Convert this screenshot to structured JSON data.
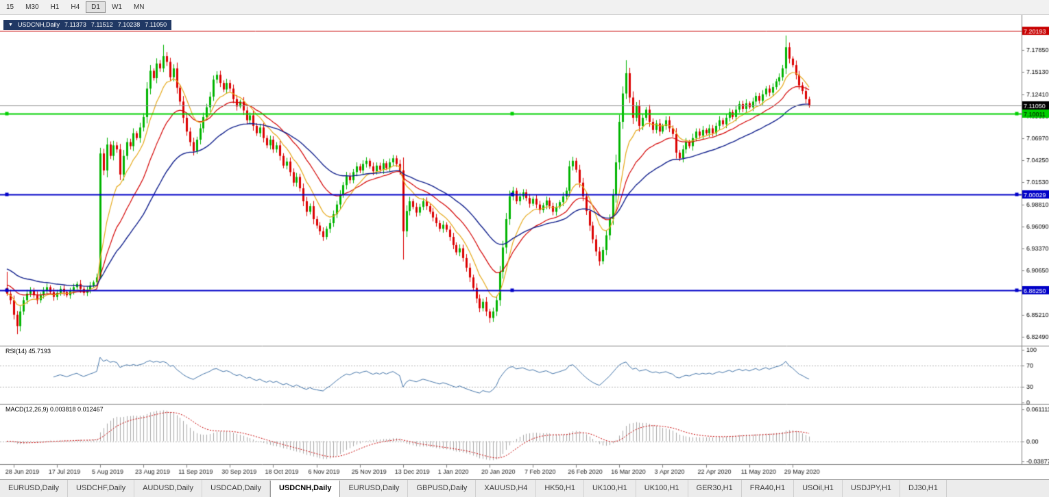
{
  "toolbar": {
    "buttons": [
      "15",
      "M30",
      "H1",
      "H4",
      "D1",
      "W1",
      "MN"
    ],
    "active": "D1"
  },
  "symbol_info": {
    "arrow": "▼",
    "name": "USDCNH,Daily",
    "open": "7.11373",
    "high": "7.11512",
    "low": "7.10238",
    "close": "7.11050"
  },
  "colors": {
    "candle_up": "#00b400",
    "candle_down": "#dc0000",
    "background": "#ffffff",
    "axis_text": "#000000",
    "panel_separator": "#808080",
    "grid_level": "#b4b4b4",
    "current_price_line": "#909090"
  },
  "chart_data": {
    "type": "candlestick",
    "symbol": "USDCNH",
    "timeframe": "Daily",
    "x_labels": [
      "28 Jun 2019",
      "17 Jul 2019",
      "5 Aug 2019",
      "23 Aug 2019",
      "11 Sep 2019",
      "30 Sep 2019",
      "18 Oct 2019",
      "6 Nov 2019",
      "25 Nov 2019",
      "13 Dec 2019",
      "1 Jan 2020",
      "20 Jan 2020",
      "7 Feb 2020",
      "26 Feb 2020",
      "16 Mar 2020",
      "3 Apr 2020",
      "22 Apr 2020",
      "11 May 2020",
      "29 May 2020"
    ],
    "x_label_indices": [
      2,
      15,
      28,
      41,
      54,
      67,
      80,
      93,
      106,
      119,
      132,
      145,
      158,
      171,
      184,
      197,
      210,
      223,
      236
    ],
    "price_axis": {
      "ticks": [
        "7.17850",
        "7.15130",
        "7.12410",
        "7.09690",
        "7.06970",
        "7.04250",
        "7.01530",
        "6.98810",
        "6.96090",
        "6.93370",
        "6.90650",
        "6.87930",
        "6.85210",
        "6.82490"
      ],
      "top_price": 7.215,
      "bottom_price": 6.818
    },
    "candles": {
      "first_open": 6.885,
      "closes": [
        6.878,
        6.87,
        6.852,
        6.838,
        6.856,
        6.87,
        6.878,
        6.882,
        6.876,
        6.87,
        6.876,
        6.882,
        6.886,
        6.88,
        6.874,
        6.879,
        6.884,
        6.88,
        6.876,
        6.881,
        6.886,
        6.89,
        6.884,
        6.879,
        6.883,
        6.888,
        6.892,
        6.898,
        7.051,
        7.03,
        7.062,
        7.048,
        7.061,
        7.056,
        7.025,
        7.048,
        7.065,
        7.06,
        7.076,
        7.07,
        7.083,
        7.096,
        7.131,
        7.153,
        7.144,
        7.162,
        7.156,
        7.171,
        7.164,
        7.145,
        7.156,
        7.132,
        7.115,
        7.095,
        7.078,
        7.065,
        7.054,
        7.068,
        7.082,
        7.096,
        7.108,
        7.121,
        7.142,
        7.148,
        7.138,
        7.13,
        7.138,
        7.131,
        7.118,
        7.109,
        7.115,
        7.104,
        7.092,
        7.098,
        7.085,
        7.076,
        7.083,
        7.07,
        7.061,
        7.068,
        7.056,
        7.061,
        7.048,
        7.036,
        7.041,
        7.028,
        7.015,
        7.022,
        7.008,
        6.992,
        6.979,
        6.986,
        6.97,
        6.962,
        6.955,
        6.948,
        6.958,
        6.965,
        6.976,
        6.988,
        7.0,
        7.012,
        7.023,
        7.018,
        7.028,
        7.035,
        7.03,
        7.038,
        7.042,
        7.035,
        7.029,
        7.036,
        7.031,
        7.039,
        7.033,
        7.04,
        7.045,
        7.038,
        7.03,
        6.955,
        6.98,
        6.992,
        6.985,
        6.978,
        6.985,
        6.992,
        6.986,
        6.979,
        6.972,
        6.965,
        6.958,
        6.963,
        6.957,
        6.948,
        6.938,
        6.929,
        6.934,
        6.922,
        6.91,
        6.898,
        6.885,
        6.872,
        6.86,
        6.868,
        6.856,
        6.848,
        6.856,
        6.87,
        6.905,
        6.935,
        6.97,
        6.998,
        7.005,
        6.992,
        6.998,
        7.003,
        6.996,
        6.989,
        6.995,
        6.988,
        6.981,
        6.987,
        6.993,
        6.986,
        6.979,
        6.985,
        6.991,
        6.998,
        7.005,
        7.035,
        7.042,
        7.031,
        7.015,
        6.998,
        6.98,
        6.962,
        6.945,
        6.93,
        6.918,
        6.932,
        6.95,
        6.97,
        7.0,
        7.04,
        7.09,
        7.125,
        7.15,
        7.12,
        7.095,
        7.11,
        7.085,
        7.095,
        7.105,
        7.09,
        7.08,
        7.088,
        7.078,
        7.085,
        7.092,
        7.082,
        7.075,
        7.052,
        7.045,
        7.056,
        7.065,
        7.06,
        7.07,
        7.078,
        7.073,
        7.08,
        7.076,
        7.082,
        7.076,
        7.085,
        7.092,
        7.087,
        7.095,
        7.102,
        7.096,
        7.105,
        7.112,
        7.106,
        7.113,
        7.108,
        7.115,
        7.122,
        7.116,
        7.124,
        7.131,
        7.126,
        7.133,
        7.14,
        7.145,
        7.156,
        7.182,
        7.168,
        7.16,
        7.148,
        7.135,
        7.128,
        7.118,
        7.1105
      ],
      "overrides": {
        "0": {
          "h": 6.905
        },
        "3": {
          "l": 6.828
        },
        "28": {
          "h": 7.058,
          "l": 6.896
        },
        "47": {
          "h": 7.185
        },
        "119": {
          "h": 7.046,
          "l": 6.92
        },
        "145": {
          "l": 6.842
        },
        "186": {
          "h": 7.166
        },
        "234": {
          "h": 7.1965
        }
      }
    },
    "moving_averages": [
      {
        "name": "ma-fast-red",
        "period": 20,
        "seed": 6.89,
        "color": "#d40000",
        "width": 1.2
      },
      {
        "name": "ma-fast-gold",
        "period": 9,
        "seed": 6.878,
        "color": "#e6a817",
        "width": 1.2
      },
      {
        "name": "ma-slow-navy",
        "period": 40,
        "seed": 6.91,
        "color": "#101f8c",
        "width": 1.4
      }
    ],
    "hlines": [
      {
        "price": 7.20193,
        "color": "#c80000",
        "width": 1,
        "handles": false,
        "text_color": "#ffffff"
      },
      {
        "price": 7.10011,
        "color": "#00d000",
        "width": 2,
        "handles": true,
        "text_color": "#000000"
      },
      {
        "price": 7.00029,
        "color": "#0000c8",
        "width": 2,
        "handles": true,
        "text_color": "#ffffff"
      },
      {
        "price": 6.8825,
        "color": "#0000c8",
        "width": 2,
        "handles": true,
        "text_color": "#ffffff"
      }
    ],
    "current_price": {
      "price": 7.1105,
      "line_color": "#909090",
      "box_color": "#000000",
      "text_color": "#ffffff"
    },
    "rsi": {
      "period": 14,
      "header": "RSI(14) 45.7193",
      "value": "45.7193",
      "levels": [
        70,
        30
      ],
      "axis_labels": [
        "100",
        "70",
        "30",
        "0"
      ],
      "axis_values": [
        100,
        70,
        30,
        0
      ],
      "color": "#4173a8"
    },
    "macd": {
      "fast": 12,
      "slow": 26,
      "signal": 9,
      "header": "MACD(12,26,9) 0.003818 0.012467",
      "main_value": "0.003818",
      "signal_value": "0.012467",
      "axis_labels": [
        "0.0611119",
        "0.00",
        "-0.03877"
      ],
      "axis_values": [
        0.0611119,
        0,
        -0.03877
      ],
      "hist_color": "#a8a8a8",
      "signal_color": "#c80000"
    }
  },
  "tabs": {
    "items": [
      "EURUSD,Daily",
      "USDCHF,Daily",
      "AUDUSD,Daily",
      "USDCAD,Daily",
      "USDCNH,Daily",
      "EURUSD,Daily",
      "GBPUSD,Daily",
      "XAUUSD,H4",
      "HK50,H1",
      "UK100,H1",
      "UK100,H1",
      "GER30,H1",
      "FRA40,H1",
      "USOil,H1",
      "USDJPY,H1",
      "DJ30,H1"
    ],
    "active_index": 4
  }
}
